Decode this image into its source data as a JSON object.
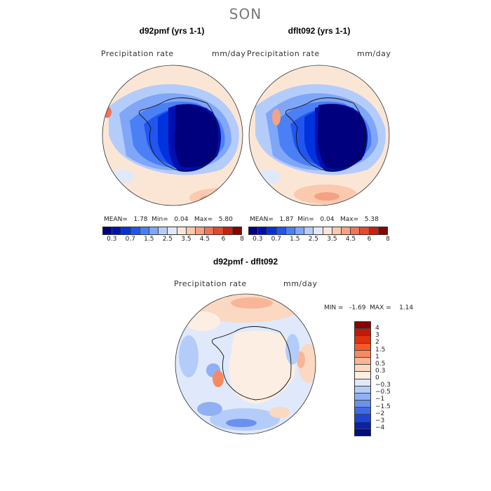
{
  "season": "SON",
  "panels": [
    {
      "title": "d92pmf (yrs 1-1)",
      "variable": "Precipitation rate",
      "units": "mm/day",
      "stats": {
        "mean_label": "MEAN=",
        "mean": "1.78",
        "min_label": "Min=",
        "min": "0.04",
        "max_label": "Max=",
        "max": "5.80"
      }
    },
    {
      "title": "dflt092 (yrs 1-1)",
      "variable": "Precipitation rate",
      "units": "mm/day",
      "stats": {
        "mean_label": "MEAN=",
        "mean": "1.87",
        "min_label": "Min=",
        "min": "0.04",
        "max_label": "Max=",
        "max": "5.38"
      }
    }
  ],
  "diff": {
    "title": "d92pmf - dflt092",
    "variable": "Precipitation rate",
    "units": "mm/day",
    "minmax": "MIN =   -1.69  MAX =    1.14"
  },
  "abs_colorbar": {
    "colors": [
      "#00007f",
      "#0010b0",
      "#0033dd",
      "#2255ee",
      "#4a7ff5",
      "#7fa6f7",
      "#b4ccfa",
      "#dfe9fb",
      "#fbe6d6",
      "#fbc9ae",
      "#f5a184",
      "#ee7558",
      "#e34a2e",
      "#c9210f",
      "#8b0000"
    ],
    "ticks": [
      "0.3",
      "0.7",
      "1.5",
      "2.5",
      "3.5",
      "4.5",
      "6",
      "8"
    ]
  },
  "diff_colorbar": {
    "colors": [
      "#8b0000",
      "#c01b08",
      "#e03010",
      "#f55a2a",
      "#f78a62",
      "#f9b597",
      "#fbd8c2",
      "#fdeee3",
      "#dfe9fb",
      "#b4ccfa",
      "#8fb0f5",
      "#6a90f0",
      "#3f6ae6",
      "#1e44d4",
      "#0a22a8",
      "#00107a"
    ],
    "ticks": [
      "4",
      "3",
      "2",
      "1.5",
      "1",
      "0.5",
      "0.3",
      "0",
      "−0.3",
      "−0.5",
      "−1",
      "−1.5",
      "−2",
      "−3",
      "−4"
    ]
  }
}
